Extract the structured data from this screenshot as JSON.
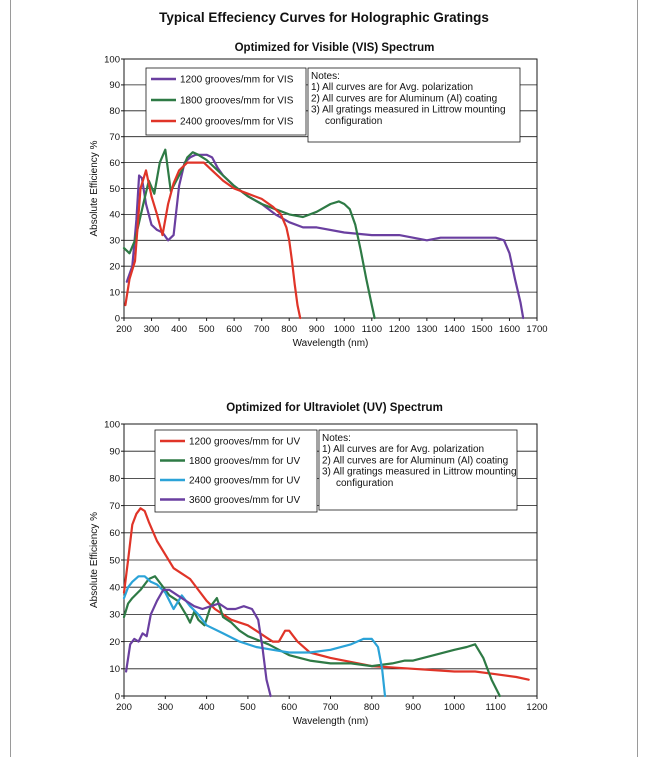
{
  "page": {
    "title": "Typical Effeciency Curves for Holographic Gratings"
  },
  "chart_data": [
    {
      "type": "line",
      "title": "Optimized for Visible (VIS) Spectrum",
      "xlabel": "Wavelength (nm)",
      "ylabel": "Absolute Efficiency %",
      "xlim": [
        200,
        1700
      ],
      "ylim": [
        0,
        100
      ],
      "xticks": [
        200,
        300,
        400,
        500,
        600,
        700,
        800,
        900,
        1000,
        1100,
        1200,
        1300,
        1400,
        1500,
        1600,
        1700
      ],
      "yticks": [
        0,
        10,
        20,
        30,
        40,
        50,
        60,
        70,
        80,
        90,
        100
      ],
      "grid": "horizontal",
      "legend_position": "top-left",
      "notes": [
        "Notes:",
        "1) All curves are for Avg. polarization",
        "2) All curves are for Aluminum (Al) coating",
        "3) All gratings measured in Littrow mounting",
        "configuration"
      ],
      "series": [
        {
          "name": "1200 grooves/mm for VIS",
          "color": "#6a3fa0",
          "x": [
            210,
            230,
            245,
            255,
            265,
            280,
            300,
            320,
            340,
            360,
            380,
            400,
            420,
            440,
            460,
            480,
            500,
            520,
            540,
            560,
            600,
            650,
            700,
            750,
            800,
            850,
            900,
            1000,
            1100,
            1200,
            1250,
            1300,
            1350,
            1400,
            1450,
            1500,
            1550,
            1580,
            1600,
            1620,
            1640,
            1650
          ],
          "y": [
            14,
            20,
            38,
            55,
            54,
            44,
            36,
            34,
            33,
            30,
            32,
            51,
            60,
            62,
            63,
            63,
            63,
            62,
            58,
            55,
            51,
            47,
            44,
            40,
            37,
            35,
            35,
            33,
            32,
            32,
            31,
            30,
            31,
            31,
            31,
            31,
            31,
            30,
            25,
            15,
            6,
            0
          ]
        },
        {
          "name": "1800 grooves/mm for VIS",
          "color": "#2e7a45",
          "x": [
            200,
            220,
            240,
            255,
            270,
            290,
            310,
            330,
            350,
            370,
            390,
            410,
            430,
            450,
            470,
            500,
            550,
            600,
            650,
            700,
            750,
            800,
            850,
            900,
            950,
            980,
            1000,
            1020,
            1040,
            1060,
            1080,
            1100,
            1110
          ],
          "y": [
            27,
            25,
            30,
            37,
            44,
            53,
            48,
            60,
            65,
            49,
            53,
            57,
            62,
            64,
            63,
            61,
            56,
            51,
            47,
            44,
            42,
            40,
            39,
            41,
            44,
            45,
            44,
            42,
            36,
            26,
            15,
            5,
            0
          ]
        },
        {
          "name": "2400 grooves/mm for VIS",
          "color": "#e03428",
          "x": [
            205,
            220,
            240,
            260,
            280,
            300,
            320,
            340,
            360,
            380,
            400,
            430,
            460,
            490,
            520,
            560,
            600,
            650,
            700,
            740,
            770,
            790,
            800,
            810,
            820,
            830,
            840
          ],
          "y": [
            5,
            15,
            22,
            50,
            57,
            47,
            40,
            32,
            44,
            52,
            57,
            60,
            60,
            60,
            57,
            53,
            50,
            48,
            46,
            43,
            40,
            35,
            30,
            22,
            13,
            5,
            0
          ]
        }
      ]
    },
    {
      "type": "line",
      "title": "Optimized for Ultraviolet (UV) Spectrum",
      "xlabel": "Wavelength (nm)",
      "ylabel": "Absolute Efficiency %",
      "xlim": [
        200,
        1200
      ],
      "ylim": [
        0,
        100
      ],
      "xticks": [
        200,
        300,
        400,
        500,
        600,
        700,
        800,
        900,
        1000,
        1100,
        1200
      ],
      "yticks": [
        0,
        10,
        20,
        30,
        40,
        50,
        60,
        70,
        80,
        90,
        100
      ],
      "grid": "horizontal",
      "legend_position": "top-left",
      "notes": [
        "Notes:",
        "1) All curves are for Avg. polarization",
        "2) All curves are for Aluminum (Al) coating",
        "3) All gratings measured in Littrow mounting",
        "configuration"
      ],
      "series": [
        {
          "name": "1200 grooves/mm for UV",
          "color": "#e03428",
          "x": [
            200,
            210,
            220,
            230,
            240,
            250,
            260,
            280,
            300,
            320,
            340,
            360,
            380,
            400,
            420,
            440,
            460,
            480,
            500,
            520,
            540,
            560,
            575,
            590,
            600,
            620,
            650,
            700,
            800,
            900,
            1000,
            1050,
            1100,
            1150,
            1180
          ],
          "y": [
            38,
            50,
            63,
            67,
            69,
            68,
            64,
            57,
            52,
            47,
            45,
            43,
            39,
            35,
            32,
            30,
            28,
            27,
            26,
            24,
            22,
            20,
            20,
            24,
            24,
            20,
            16,
            14,
            11,
            10,
            9,
            9,
            8,
            7,
            6
          ]
        },
        {
          "name": "1800 grooves/mm for UV",
          "color": "#2e7a45",
          "x": [
            200,
            210,
            220,
            240,
            260,
            275,
            290,
            310,
            330,
            350,
            360,
            370,
            380,
            395,
            410,
            425,
            440,
            460,
            480,
            500,
            550,
            600,
            650,
            700,
            750,
            800,
            850,
            880,
            900,
            950,
            1000,
            1030,
            1050,
            1070,
            1090,
            1110
          ],
          "y": [
            29,
            34,
            36,
            39,
            43,
            44,
            41,
            37,
            35,
            30,
            27,
            31,
            28,
            26,
            33,
            36,
            29,
            27,
            24,
            22,
            19,
            15,
            13,
            12,
            12,
            11,
            12,
            13,
            13,
            15,
            17,
            18,
            19,
            14,
            6,
            0
          ]
        },
        {
          "name": "2400 grooves/mm for UV",
          "color": "#2ba3d8",
          "x": [
            200,
            210,
            220,
            235,
            250,
            265,
            280,
            300,
            320,
            340,
            360,
            380,
            400,
            440,
            480,
            520,
            560,
            600,
            650,
            700,
            750,
            780,
            800,
            815,
            825,
            832
          ],
          "y": [
            36,
            40,
            42,
            44,
            44,
            42,
            41,
            38,
            32,
            37,
            33,
            30,
            26,
            23,
            20,
            18,
            17,
            16,
            16,
            17,
            19,
            21,
            21,
            18,
            10,
            0
          ]
        },
        {
          "name": "3600 grooves/mm for UV",
          "color": "#6a3fa0",
          "x": [
            205,
            215,
            225,
            235,
            245,
            255,
            265,
            280,
            295,
            310,
            330,
            350,
            370,
            390,
            410,
            430,
            450,
            470,
            490,
            510,
            525,
            535,
            545,
            555
          ],
          "y": [
            9,
            19,
            21,
            20,
            23,
            22,
            30,
            35,
            39,
            39,
            37,
            35,
            33,
            32,
            33,
            34,
            32,
            32,
            33,
            32,
            28,
            18,
            6,
            0
          ]
        }
      ]
    }
  ]
}
